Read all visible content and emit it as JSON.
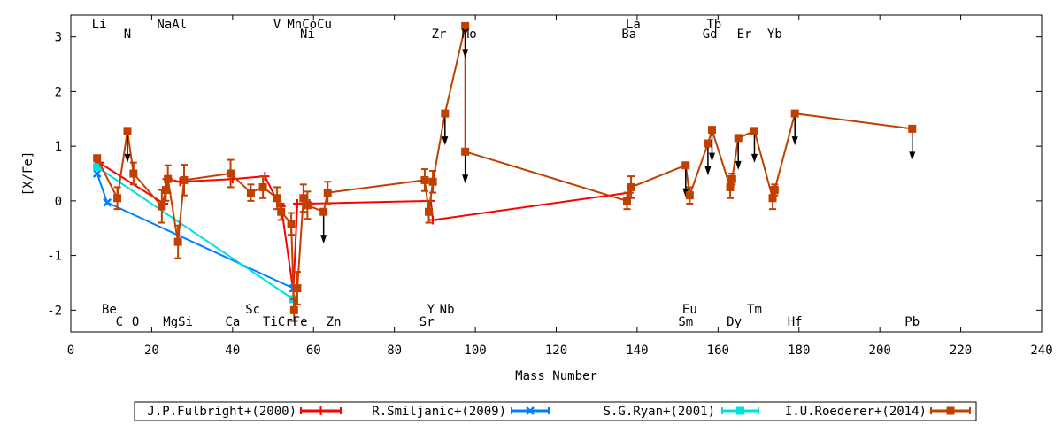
{
  "chart_data": {
    "type": "line",
    "xlabel": "Mass Number",
    "ylabel": "[X/Fe]",
    "xlim": [
      0,
      240
    ],
    "ylim": [
      -2.4,
      3.4
    ],
    "x_ticks": [
      0,
      20,
      40,
      60,
      80,
      100,
      120,
      140,
      160,
      180,
      200,
      220,
      240
    ],
    "y_ticks": [
      -2,
      -1,
      0,
      1,
      2,
      3
    ],
    "grid": false,
    "legend_placement": "bottom",
    "element_labels_top": [
      {
        "text": "Li",
        "x": 7,
        "row": 1
      },
      {
        "text": "N",
        "x": 14,
        "row": 2
      },
      {
        "text": "NaAl",
        "x": 25,
        "row": 1
      },
      {
        "text": "V",
        "x": 51,
        "row": 1
      },
      {
        "text": "MnCoCu",
        "x": 59,
        "row": 1
      },
      {
        "text": "Ni",
        "x": 58.5,
        "row": 2
      },
      {
        "text": "Zr",
        "x": 91,
        "row": 2
      },
      {
        "text": "Mo",
        "x": 98.5,
        "row": 2
      },
      {
        "text": "La",
        "x": 139,
        "row": 1
      },
      {
        "text": "Ba",
        "x": 138,
        "row": 2
      },
      {
        "text": "Tb",
        "x": 159,
        "row": 1
      },
      {
        "text": "Gd",
        "x": 158,
        "row": 2
      },
      {
        "text": "Er",
        "x": 166.5,
        "row": 2
      },
      {
        "text": "Yb",
        "x": 174,
        "row": 2
      }
    ],
    "element_labels_bottom": [
      {
        "text": "Be",
        "x": 9.5,
        "row": 1
      },
      {
        "text": "C",
        "x": 12,
        "row": 2
      },
      {
        "text": "O",
        "x": 16,
        "row": 2
      },
      {
        "text": "MgSi",
        "x": 26.5,
        "row": 2
      },
      {
        "text": "Sc",
        "x": 45,
        "row": 1
      },
      {
        "text": "Ca",
        "x": 40,
        "row": 2
      },
      {
        "text": "TiCrFe",
        "x": 53,
        "row": 2
      },
      {
        "text": "Zn",
        "x": 65,
        "row": 2
      },
      {
        "text": "Y",
        "x": 89,
        "row": 1
      },
      {
        "text": "Nb",
        "x": 93,
        "row": 1
      },
      {
        "text": "Sr",
        "x": 88,
        "row": 2
      },
      {
        "text": "Eu",
        "x": 153,
        "row": 1
      },
      {
        "text": "Sm",
        "x": 152,
        "row": 2
      },
      {
        "text": "Tm",
        "x": 169,
        "row": 1
      },
      {
        "text": "Dy",
        "x": 164,
        "row": 2
      },
      {
        "text": "Hf",
        "x": 179,
        "row": 2
      },
      {
        "text": "Pb",
        "x": 208,
        "row": 2
      }
    ],
    "series": [
      {
        "name": "J.P.Fulbright+(2000)",
        "color": "#ff0000",
        "marker": "plus",
        "points": [
          {
            "x": 7,
            "y": 0.7
          },
          {
            "x": 23,
            "y": -0.05
          },
          {
            "x": 24,
            "y": 0.4
          },
          {
            "x": 27,
            "y": 0.35
          },
          {
            "x": 40,
            "y": 0.4
          },
          {
            "x": 48,
            "y": 0.45
          },
          {
            "x": 51,
            "y": 0.0
          },
          {
            "x": 52,
            "y": -0.1
          },
          {
            "x": 55,
            "y": -1.65
          },
          {
            "x": 56,
            "y": -0.05
          },
          {
            "x": 59,
            "y": -0.05
          },
          {
            "x": 89,
            "y": 0.0
          },
          {
            "x": 89.5,
            "y": -0.35
          },
          {
            "x": 138,
            "y": 0.15
          }
        ]
      },
      {
        "name": "R.Smiljanic+(2009)",
        "color": "#0080ff",
        "marker": "cross",
        "points": [
          {
            "x": 6.5,
            "y": 0.5
          },
          {
            "x": 9,
            "y": -0.03
          },
          {
            "x": 55,
            "y": -1.6
          }
        ]
      },
      {
        "name": "S.G.Ryan+(2001)",
        "color": "#00e0e0",
        "marker": "square",
        "points": [
          {
            "x": 6.5,
            "y": 0.62
          },
          {
            "x": 55,
            "y": -1.8
          }
        ]
      },
      {
        "name": "I.U.Roederer+(2014)",
        "color": "#c04000",
        "marker": "square",
        "points": [
          {
            "x": 6.5,
            "y": 0.78,
            "err": 0.05
          },
          {
            "x": 11.5,
            "y": 0.05,
            "err": 0.2
          },
          {
            "x": 14,
            "y": 1.28,
            "upper": true
          },
          {
            "x": 15.5,
            "y": 0.5,
            "err": 0.2
          },
          {
            "x": 22.5,
            "y": -0.1,
            "err": 0.3
          },
          {
            "x": 23.5,
            "y": 0.2,
            "err": 0.2
          },
          {
            "x": 24,
            "y": 0.4,
            "err": 0.25
          },
          {
            "x": 26.5,
            "y": -0.75,
            "err": 0.3
          },
          {
            "x": 28,
            "y": 0.38,
            "err": 0.28
          },
          {
            "x": 39.5,
            "y": 0.5,
            "err": 0.25
          },
          {
            "x": 44.5,
            "y": 0.15,
            "err": 0.15
          },
          {
            "x": 47.5,
            "y": 0.25,
            "err": 0.2
          },
          {
            "x": 51,
            "y": 0.05,
            "err": 0.2
          },
          {
            "x": 52,
            "y": -0.2,
            "err": 0.15
          },
          {
            "x": 54.5,
            "y": -0.42,
            "err": 0.2
          },
          {
            "x": 55.2,
            "y": -2.0,
            "err": 0.2
          },
          {
            "x": 56,
            "y": -1.6,
            "err": 0.3
          },
          {
            "x": 57.5,
            "y": 0.05,
            "err": 0.25
          },
          {
            "x": 58.5,
            "y": -0.08,
            "err": 0.25
          },
          {
            "x": 62.5,
            "y": -0.2,
            "upper": true
          },
          {
            "x": 63.5,
            "y": 0.15,
            "err": 0.2
          },
          {
            "x": 87.5,
            "y": 0.38,
            "err": 0.2
          },
          {
            "x": 88.5,
            "y": -0.2,
            "err": 0.2
          },
          {
            "x": 89.5,
            "y": 0.35,
            "err": 0.2
          },
          {
            "x": 92.5,
            "y": 1.6,
            "upper": true
          },
          {
            "x": 97.5,
            "y": 3.2,
            "upper": true
          },
          {
            "x": 97.5,
            "y": 0.9,
            "upper": true
          },
          {
            "x": 137.5,
            "y": 0.0,
            "err": 0.15
          },
          {
            "x": 138.5,
            "y": 0.25,
            "err": 0.2
          },
          {
            "x": 152,
            "y": 0.65,
            "upper": true
          },
          {
            "x": 153,
            "y": 0.1,
            "err": 0.15
          },
          {
            "x": 157.5,
            "y": 1.05,
            "upper": true
          },
          {
            "x": 158.5,
            "y": 1.3,
            "upper": true
          },
          {
            "x": 163,
            "y": 0.25,
            "err": 0.2
          },
          {
            "x": 163.5,
            "y": 0.4,
            "err": 0.1
          },
          {
            "x": 165,
            "y": 1.15,
            "upper": true
          },
          {
            "x": 169,
            "y": 1.28,
            "upper": true
          },
          {
            "x": 173.5,
            "y": 0.05,
            "err": 0.2
          },
          {
            "x": 174,
            "y": 0.2,
            "err": 0.1
          },
          {
            "x": 179,
            "y": 1.6,
            "upper": true
          },
          {
            "x": 208,
            "y": 1.32,
            "upper": true
          }
        ]
      }
    ]
  }
}
